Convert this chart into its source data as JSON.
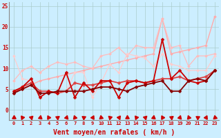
{
  "background_color": "#cceeff",
  "grid_color": "#aacccc",
  "xlabel": "Vent moyen/en rafales ( km/h )",
  "xlabel_color": "#cc0000",
  "xlabel_fontsize": 7,
  "xticks": [
    0,
    1,
    2,
    3,
    4,
    5,
    6,
    7,
    8,
    9,
    10,
    11,
    12,
    13,
    14,
    15,
    16,
    17,
    18,
    19,
    20,
    21,
    22,
    23
  ],
  "yticks": [
    0,
    5,
    10,
    15,
    20,
    25
  ],
  "ylim": [
    -2.5,
    26
  ],
  "xlim": [
    -0.5,
    23.5
  ],
  "lines": [
    {
      "x": [
        0,
        1,
        2,
        3,
        4,
        5,
        6,
        7,
        8,
        9,
        10,
        11,
        12,
        13,
        14,
        15,
        16,
        17,
        18,
        19,
        20,
        21,
        22,
        23
      ],
      "y": [
        4.0,
        5.0,
        6.0,
        7.0,
        7.5,
        8.0,
        8.5,
        9.0,
        9.5,
        10.0,
        10.5,
        11.0,
        11.5,
        12.0,
        12.5,
        13.0,
        13.5,
        22.0,
        13.5,
        14.0,
        14.5,
        15.0,
        15.5,
        22.5
      ],
      "color": "#ffaaaa",
      "lw": 1.0,
      "marker": "D",
      "ms": 2.0
    },
    {
      "x": [
        0,
        1,
        2,
        3,
        4,
        5,
        6,
        7,
        8,
        9,
        10,
        11,
        12,
        13,
        14,
        15,
        16,
        17,
        18,
        19,
        20,
        21,
        22,
        23
      ],
      "y": [
        7.0,
        9.5,
        10.5,
        9.0,
        10.5,
        11.5,
        11.0,
        11.5,
        10.5,
        10.0,
        13.0,
        13.5,
        15.0,
        13.0,
        15.5,
        15.0,
        15.0,
        22.0,
        15.0,
        15.5,
        10.5,
        13.0,
        13.0,
        13.5
      ],
      "color": "#ffbbbb",
      "lw": 0.9,
      "marker": "D",
      "ms": 2.0
    },
    {
      "x": [
        0,
        1,
        2,
        3,
        4,
        5,
        6,
        7,
        8,
        9,
        10,
        11,
        12,
        13,
        14,
        15,
        16,
        17,
        18,
        19,
        20,
        21,
        22,
        23
      ],
      "y": [
        13.0,
        7.5,
        7.0,
        3.0,
        4.5,
        4.0,
        4.5,
        9.0,
        9.0,
        3.0,
        6.5,
        11.0,
        9.0,
        13.5,
        13.0,
        12.5,
        10.5,
        13.5,
        11.0,
        10.5,
        9.5,
        9.5,
        9.5,
        13.0
      ],
      "color": "#ffcccc",
      "lw": 0.9,
      "marker": "D",
      "ms": 2.0
    },
    {
      "x": [
        0,
        1,
        2,
        3,
        4,
        5,
        6,
        7,
        8,
        9,
        10,
        11,
        12,
        13,
        14,
        15,
        16,
        17,
        18,
        19,
        20,
        21,
        22,
        23
      ],
      "y": [
        4.0,
        5.5,
        6.5,
        4.5,
        4.5,
        4.0,
        4.5,
        6.5,
        6.0,
        6.0,
        6.5,
        7.0,
        6.5,
        7.0,
        7.0,
        6.5,
        7.0,
        7.5,
        7.5,
        8.0,
        7.0,
        7.5,
        8.0,
        9.5
      ],
      "color": "#dd4444",
      "lw": 1.3,
      "marker": "D",
      "ms": 2.5
    },
    {
      "x": [
        0,
        1,
        2,
        3,
        4,
        5,
        6,
        7,
        8,
        9,
        10,
        11,
        12,
        13,
        14,
        15,
        16,
        17,
        18,
        19,
        20,
        21,
        22,
        23
      ],
      "y": [
        4.5,
        5.5,
        7.5,
        3.0,
        4.5,
        4.0,
        9.0,
        3.0,
        6.5,
        4.5,
        7.0,
        7.0,
        3.0,
        6.5,
        7.0,
        6.5,
        7.0,
        17.0,
        7.5,
        9.5,
        7.0,
        6.5,
        7.0,
        9.5
      ],
      "color": "#cc0000",
      "lw": 1.3,
      "marker": "D",
      "ms": 2.5
    },
    {
      "x": [
        0,
        1,
        2,
        3,
        4,
        5,
        6,
        7,
        8,
        9,
        10,
        11,
        12,
        13,
        14,
        15,
        16,
        17,
        18,
        19,
        20,
        21,
        22,
        23
      ],
      "y": [
        4.0,
        5.0,
        6.0,
        4.0,
        4.0,
        4.5,
        4.5,
        4.5,
        4.5,
        5.0,
        5.5,
        5.5,
        5.0,
        4.5,
        5.5,
        6.0,
        6.5,
        7.0,
        4.5,
        4.5,
        7.0,
        7.5,
        7.0,
        9.5
      ],
      "color": "#880000",
      "lw": 1.3,
      "marker": "D",
      "ms": 2.5
    }
  ],
  "wind_symbols": {
    "y": -1.8,
    "color": "#cc0000",
    "size": 4.5
  }
}
